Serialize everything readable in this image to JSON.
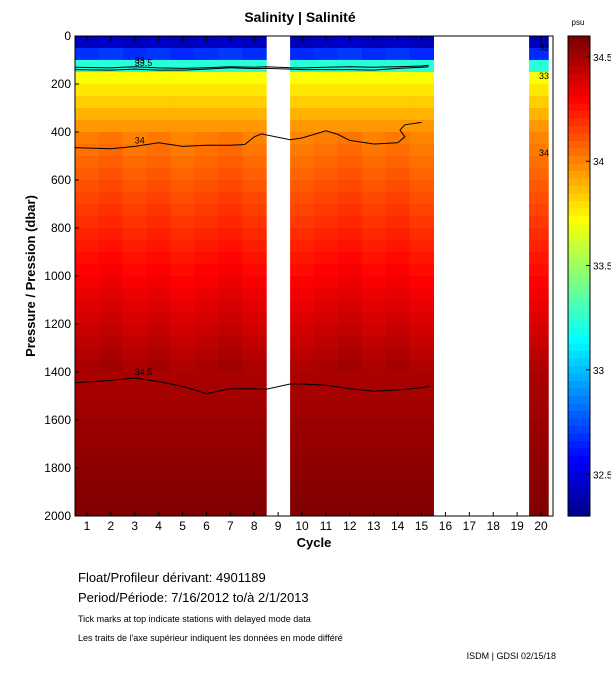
{
  "chart_data": {
    "type": "heatmap",
    "title": "Salinity | Salinité",
    "xlabel": "Cycle",
    "ylabel": "Pressure / Pression (dbar)",
    "x_ticks": [
      1,
      2,
      3,
      4,
      5,
      6,
      7,
      8,
      9,
      10,
      11,
      12,
      13,
      14,
      15,
      16,
      17,
      18,
      19,
      20
    ],
    "y_ticks": [
      0,
      200,
      400,
      600,
      800,
      1000,
      1200,
      1400,
      1600,
      1800,
      2000
    ],
    "ylim": [
      2000,
      0
    ],
    "xlim": [
      0.5,
      20.5
    ],
    "cycles_with_data": [
      1,
      2,
      3,
      4,
      5,
      6,
      7,
      8,
      10,
      11,
      12,
      13,
      14,
      15,
      20
    ],
    "colorbar": {
      "unit": "psu",
      "range": [
        32.3,
        34.6
      ],
      "ticks": [
        32.5,
        33,
        33.5,
        34,
        34.5
      ],
      "tick_labels": [
        "32.5",
        "33",
        "33.5",
        "34",
        "34.5"
      ]
    },
    "contours": [
      {
        "level": 33,
        "label": "33",
        "points": [
          [
            0.5,
            130
          ],
          [
            2,
            133
          ],
          [
            3,
            128
          ],
          [
            4,
            133
          ],
          [
            5,
            135
          ],
          [
            6,
            132
          ],
          [
            7,
            128
          ],
          [
            8,
            130
          ],
          [
            8.5,
            128
          ],
          [
            9.5,
            132
          ],
          [
            10,
            133
          ],
          [
            11,
            130
          ],
          [
            12,
            128
          ],
          [
            13,
            130
          ],
          [
            14,
            128
          ],
          [
            15,
            125
          ],
          [
            15.3,
            122
          ]
        ]
      },
      {
        "level": 33.5,
        "label": "33.5",
        "points": [
          [
            0.5,
            140
          ],
          [
            2,
            142
          ],
          [
            3,
            138
          ],
          [
            4,
            142
          ],
          [
            5,
            142
          ],
          [
            6,
            138
          ],
          [
            7,
            132
          ],
          [
            8,
            136
          ],
          [
            8.5,
            135
          ],
          [
            9.5,
            138
          ],
          [
            10,
            140
          ],
          [
            11,
            140
          ],
          [
            12,
            140
          ],
          [
            13,
            142
          ],
          [
            14,
            135
          ],
          [
            15,
            130
          ],
          [
            15.3,
            128
          ]
        ]
      },
      {
        "level": 34,
        "label": "34",
        "points": [
          [
            0.5,
            465
          ],
          [
            2,
            470
          ],
          [
            3,
            460
          ],
          [
            4,
            445
          ],
          [
            5,
            460
          ],
          [
            6,
            455
          ],
          [
            7,
            455
          ],
          [
            7.6,
            452
          ],
          [
            8,
            420
          ],
          [
            8.3,
            408
          ],
          [
            9.5,
            432
          ],
          [
            10,
            425
          ],
          [
            11,
            395
          ],
          [
            11.5,
            410
          ],
          [
            12,
            435
          ],
          [
            13,
            450
          ],
          [
            14,
            445
          ],
          [
            14.3,
            420
          ],
          [
            14.1,
            392
          ],
          [
            14.3,
            370
          ],
          [
            15,
            360
          ]
        ]
      },
      {
        "level": 34.5,
        "label": "34.5",
        "points": [
          [
            0.5,
            1445
          ],
          [
            2,
            1435
          ],
          [
            3,
            1425
          ],
          [
            4,
            1440
          ],
          [
            5,
            1460
          ],
          [
            6,
            1490
          ],
          [
            7,
            1470
          ],
          [
            8,
            1470
          ],
          [
            8.5,
            1472
          ],
          [
            9.5,
            1450
          ],
          [
            10,
            1450
          ],
          [
            11,
            1455
          ],
          [
            12,
            1470
          ],
          [
            13,
            1480
          ],
          [
            14,
            1475
          ],
          [
            15,
            1465
          ],
          [
            15.3,
            1460
          ]
        ]
      }
    ],
    "col_20_labels": [
      "32",
      "33",
      "34"
    ],
    "profile_note": "Surface layer ~32.3-33 psu (0-100 dbar), rapid increase to ~34 by 400 dbar, ~34.5-34.6 below 1400 dbar"
  },
  "info": {
    "float_label": "Float/Profileur dérivant:",
    "float_id": "4901189",
    "period_label": "Period/Période:",
    "period_from": "7/16/2012",
    "period_to_label": "to/à",
    "period_to": "2/1/2013",
    "note_en": "Tick marks at top indicate stations with delayed mode data",
    "note_fr": "Les traits de l'axe supérieur indiquent les données en mode différé",
    "stamp": "ISDM | GDSI  02/15/18"
  }
}
